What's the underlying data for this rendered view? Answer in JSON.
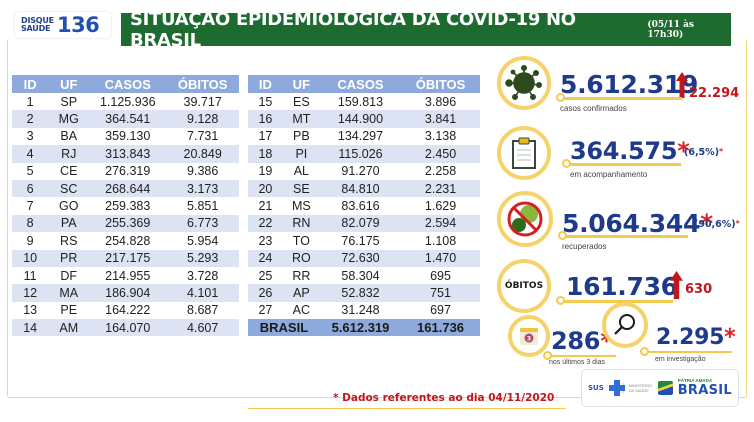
{
  "header": {
    "logo_line1": "DISQUE",
    "logo_line2": "SAÚDE",
    "logo_number": "136",
    "title": "SITUAÇÃO EPIDEMIOLÓGICA DA COVID-19 NO BRASIL",
    "timestamp": "(05/11 às 17h30)"
  },
  "table": {
    "columns": [
      "ID",
      "UF",
      "CASOS",
      "ÓBITOS"
    ],
    "left_rows": [
      {
        "id": "1",
        "uf": "SP",
        "casos": "1.125.936",
        "obitos": "39.717"
      },
      {
        "id": "2",
        "uf": "MG",
        "casos": "364.541",
        "obitos": "9.128"
      },
      {
        "id": "3",
        "uf": "BA",
        "casos": "359.130",
        "obitos": "7.731"
      },
      {
        "id": "4",
        "uf": "RJ",
        "casos": "313.843",
        "obitos": "20.849"
      },
      {
        "id": "5",
        "uf": "CE",
        "casos": "276.319",
        "obitos": "9.386"
      },
      {
        "id": "6",
        "uf": "SC",
        "casos": "268.644",
        "obitos": "3.173"
      },
      {
        "id": "7",
        "uf": "GO",
        "casos": "259.383",
        "obitos": "5.851"
      },
      {
        "id": "8",
        "uf": "PA",
        "casos": "255.369",
        "obitos": "6.773"
      },
      {
        "id": "9",
        "uf": "RS",
        "casos": "254.828",
        "obitos": "5.954"
      },
      {
        "id": "10",
        "uf": "PR",
        "casos": "217.175",
        "obitos": "5.293"
      },
      {
        "id": "11",
        "uf": "DF",
        "casos": "214.955",
        "obitos": "3.728"
      },
      {
        "id": "12",
        "uf": "MA",
        "casos": "186.904",
        "obitos": "4.101"
      },
      {
        "id": "13",
        "uf": "PE",
        "casos": "164.222",
        "obitos": "8.687"
      },
      {
        "id": "14",
        "uf": "AM",
        "casos": "164.070",
        "obitos": "4.607"
      }
    ],
    "right_rows": [
      {
        "id": "15",
        "uf": "ES",
        "casos": "159.813",
        "obitos": "3.896"
      },
      {
        "id": "16",
        "uf": "MT",
        "casos": "144.900",
        "obitos": "3.841"
      },
      {
        "id": "17",
        "uf": "PB",
        "casos": "134.297",
        "obitos": "3.138"
      },
      {
        "id": "18",
        "uf": "PI",
        "casos": "115.026",
        "obitos": "2.450"
      },
      {
        "id": "19",
        "uf": "AL",
        "casos": "91.270",
        "obitos": "2.258"
      },
      {
        "id": "20",
        "uf": "SE",
        "casos": "84.810",
        "obitos": "2.231"
      },
      {
        "id": "21",
        "uf": "MS",
        "casos": "83.616",
        "obitos": "1.629"
      },
      {
        "id": "22",
        "uf": "RN",
        "casos": "82.079",
        "obitos": "2.594"
      },
      {
        "id": "23",
        "uf": "TO",
        "casos": "76.175",
        "obitos": "1.108"
      },
      {
        "id": "24",
        "uf": "RO",
        "casos": "72.630",
        "obitos": "1.470"
      },
      {
        "id": "25",
        "uf": "RR",
        "casos": "58.304",
        "obitos": "695"
      },
      {
        "id": "26",
        "uf": "AP",
        "casos": "52.832",
        "obitos": "751"
      },
      {
        "id": "27",
        "uf": "AC",
        "casos": "31.248",
        "obitos": "697"
      }
    ],
    "total": {
      "label": "BRASIL",
      "casos": "5.612.319",
      "obitos": "161.736"
    }
  },
  "stats": {
    "confirmed": {
      "value": "5.612.319",
      "delta": "22.294",
      "label": "casos confirmados",
      "icon": "virus-icon"
    },
    "monitoring": {
      "value": "364.575",
      "star": "*",
      "pct": "(6,5%)",
      "pct_star": "*",
      "label": "em acompanhamento",
      "icon": "clipboard-icon"
    },
    "recovered": {
      "value": "5.064.344",
      "star": "*",
      "pct": "(90,6%)",
      "pct_star": "*",
      "label": "recuperados",
      "icon": "no-virus-icon"
    },
    "deaths": {
      "badge": "ÓBITOS",
      "value": "161.736",
      "delta": "630"
    },
    "last3days": {
      "value": "286",
      "star": "*",
      "label": "nos últimos 3 dias",
      "icon": "calendar-icon",
      "calendar_num": "3"
    },
    "investigation": {
      "value": "2.295",
      "star": "*",
      "label": "em investigação",
      "icon": "magnifier-icon"
    }
  },
  "footer": {
    "note": "* Dados referentes ao dia 04/11/2020",
    "sus": "SUS",
    "ministry": "MINISTÉRIO DA SAÚDE",
    "patria_small": "PÁTRIA AMADA",
    "patria_big": "BRASIL"
  },
  "colors": {
    "title_green": "#1e6b2f",
    "header_blue": "#8ea9db",
    "row_alt": "#dce3f2",
    "number_blue": "#1f3a8a",
    "alert_red": "#c0161e",
    "ring_yellow": "#f5d36a"
  }
}
